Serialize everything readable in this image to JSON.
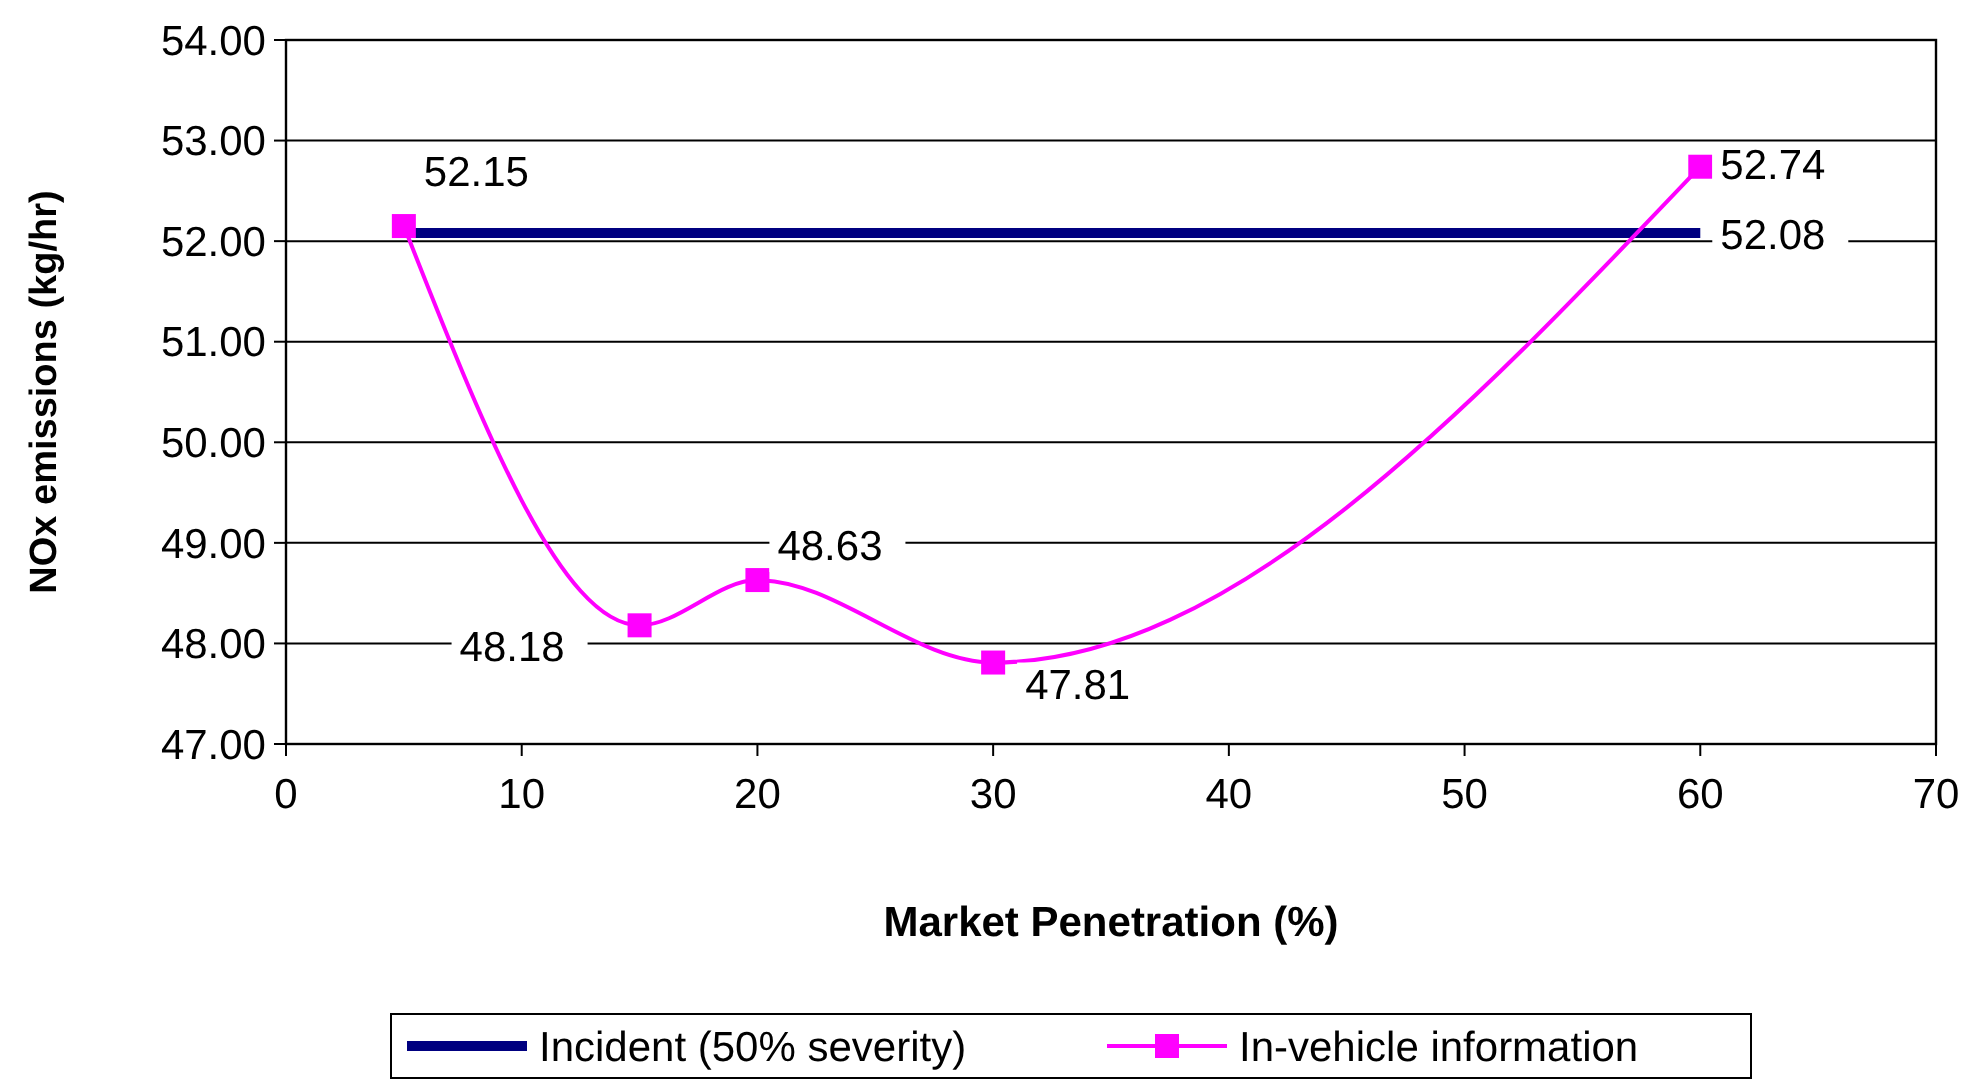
{
  "chart_data": {
    "type": "line",
    "xlabel": "Market Penetration (%)",
    "ylabel": "NOx emissions (kg/hr)",
    "xlim": [
      0,
      70
    ],
    "xticks": [
      0,
      10,
      20,
      30,
      40,
      50,
      60,
      70
    ],
    "ylim": [
      47,
      54
    ],
    "yticks": [
      {
        "value": 47,
        "label": "47.00"
      },
      {
        "value": 48,
        "label": "48.00"
      },
      {
        "value": 49,
        "label": "49.00"
      },
      {
        "value": 50,
        "label": "50.00"
      },
      {
        "value": 51,
        "label": "51.00"
      },
      {
        "value": 52,
        "label": "52.00"
      },
      {
        "value": 53,
        "label": "53.00"
      },
      {
        "value": 54,
        "label": "54.00"
      }
    ],
    "grid": "y",
    "legend": "bottom",
    "series": [
      {
        "name": "Incident (50% severity)",
        "color": "#000080",
        "x": [
          5,
          15,
          20,
          30,
          60
        ],
        "values": [
          52.08,
          52.08,
          52.08,
          52.08,
          52.08
        ],
        "marker": "none",
        "value_labels": [
          null,
          null,
          null,
          null,
          "52.08"
        ]
      },
      {
        "name": "In-vehicle information",
        "color": "#ff00ff",
        "x": [
          5,
          15,
          20,
          30,
          60
        ],
        "values": [
          52.15,
          48.18,
          48.63,
          47.81,
          52.74
        ],
        "marker": "square",
        "value_labels": [
          "52.15",
          "48.18",
          "48.63",
          "47.81",
          "52.74"
        ]
      }
    ]
  }
}
